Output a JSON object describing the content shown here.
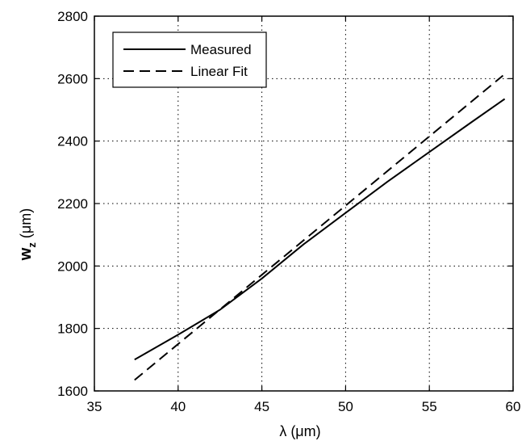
{
  "chart_data": {
    "type": "line",
    "title": "",
    "xlabel": "λ (μm)",
    "ylabel": "w_z (μm)",
    "ylabel_main": "w",
    "ylabel_sub": "z",
    "ylabel_unit": " (μm)",
    "xlim": [
      35,
      60
    ],
    "ylim": [
      1600,
      2800
    ],
    "xticks": [
      35,
      40,
      45,
      50,
      55,
      60
    ],
    "yticks": [
      1600,
      1800,
      2000,
      2200,
      2400,
      2600,
      2800
    ],
    "grid": true,
    "legend_position": "top-left",
    "series": [
      {
        "name": "Measured",
        "style": "solid",
        "color": "#000000",
        "x": [
          37.4,
          40,
          42.5,
          45,
          47.5,
          50,
          52.5,
          55,
          57.5,
          59.5
        ],
        "y": [
          1700,
          1780,
          1860,
          1960,
          2070,
          2170,
          2270,
          2365,
          2460,
          2535
        ]
      },
      {
        "name": "Linear Fit",
        "style": "dashed",
        "color": "#000000",
        "x": [
          37.4,
          59.4
        ],
        "y": [
          1635,
          2610
        ]
      }
    ]
  }
}
